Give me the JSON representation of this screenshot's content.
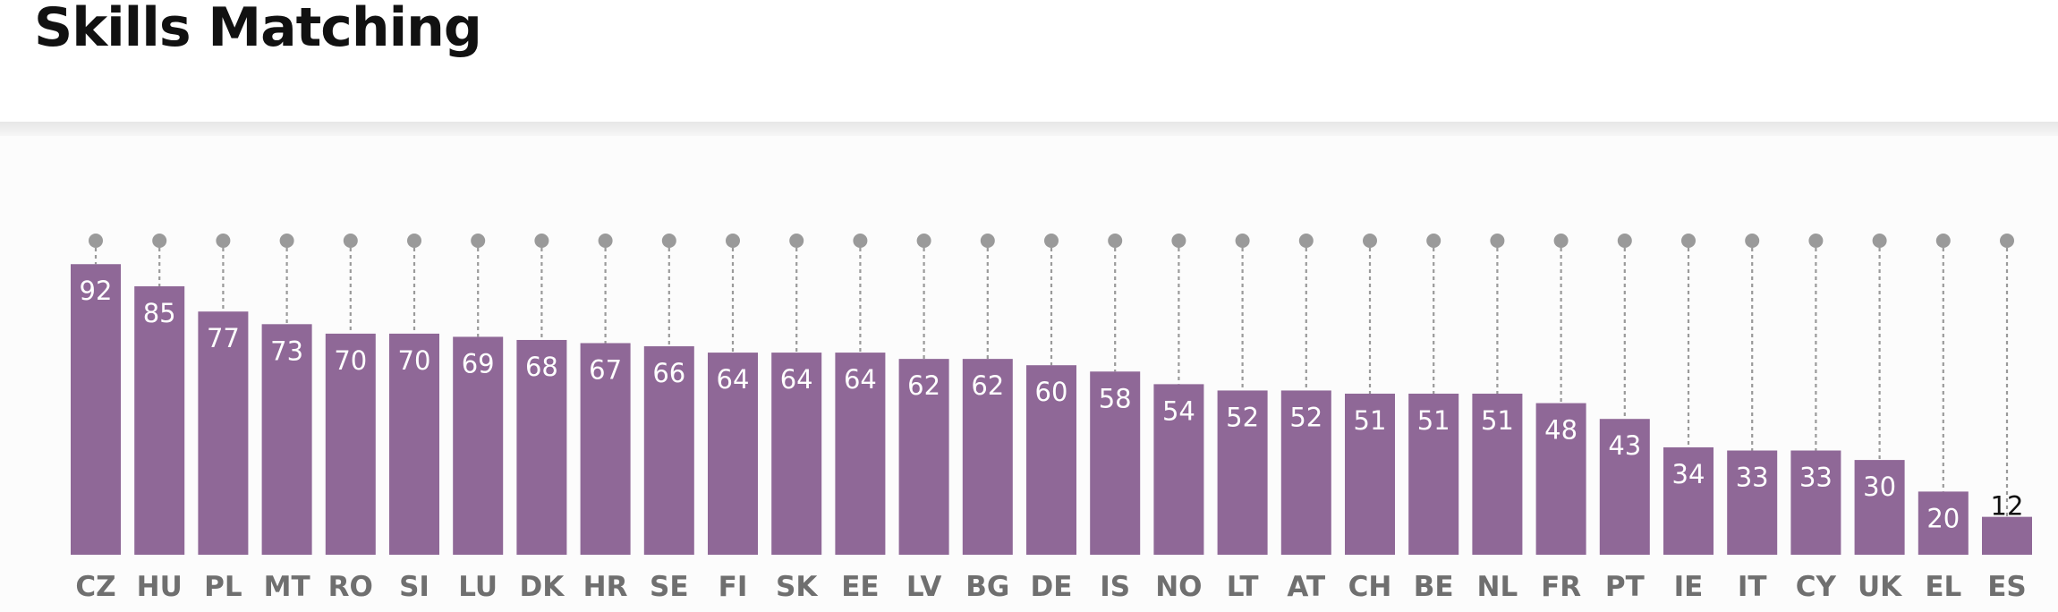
{
  "header": {
    "title": "Skills Matching"
  },
  "colors": {
    "bar": "#8f6897",
    "stem": "#9a9a9a",
    "dot": "#9a9a9a",
    "category_label": "#6f6f6f"
  },
  "chart_data": {
    "type": "bar",
    "title": "Skills Matching",
    "xlabel": "",
    "ylabel": "",
    "ylim": [
      0,
      100
    ],
    "grid": false,
    "legend": "none",
    "categories": [
      "CZ",
      "HU",
      "PL",
      "MT",
      "RO",
      "SI",
      "LU",
      "DK",
      "HR",
      "SE",
      "FI",
      "SK",
      "EE",
      "LV",
      "BG",
      "DE",
      "IS",
      "NO",
      "LT",
      "AT",
      "CH",
      "BE",
      "NL",
      "FR",
      "PT",
      "IE",
      "IT",
      "CY",
      "UK",
      "EL",
      "ES"
    ],
    "values": [
      92,
      85,
      77,
      73,
      70,
      70,
      69,
      68,
      67,
      66,
      64,
      64,
      64,
      62,
      62,
      60,
      58,
      54,
      52,
      52,
      51,
      51,
      51,
      48,
      43,
      34,
      33,
      33,
      30,
      20,
      12
    ]
  }
}
